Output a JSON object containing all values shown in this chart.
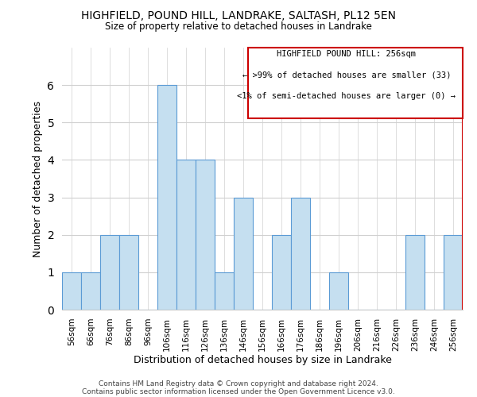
{
  "title": "HIGHFIELD, POUND HILL, LANDRAKE, SALTASH, PL12 5EN",
  "subtitle": "Size of property relative to detached houses in Landrake",
  "xlabel": "Distribution of detached houses by size in Landrake",
  "ylabel": "Number of detached properties",
  "categories": [
    "56sqm",
    "66sqm",
    "76sqm",
    "86sqm",
    "96sqm",
    "106sqm",
    "116sqm",
    "126sqm",
    "136sqm",
    "146sqm",
    "156sqm",
    "166sqm",
    "176sqm",
    "186sqm",
    "196sqm",
    "206sqm",
    "216sqm",
    "226sqm",
    "236sqm",
    "246sqm",
    "256sqm"
  ],
  "values": [
    1,
    1,
    2,
    2,
    0,
    6,
    4,
    4,
    1,
    3,
    0,
    2,
    3,
    0,
    1,
    0,
    0,
    0,
    2,
    0,
    2
  ],
  "bar_color": "#c5dff0",
  "bar_edge_color": "#5b9bd5",
  "highlight_line_color": "#cc0000",
  "annotation_title": "HIGHFIELD POUND HILL: 256sqm",
  "annotation_line1": "← >99% of detached houses are smaller (33)",
  "annotation_line2": "<1% of semi-detached houses are larger (0) →",
  "ylim": [
    0,
    7
  ],
  "yticks": [
    0,
    1,
    2,
    3,
    4,
    5,
    6
  ],
  "footer_line1": "Contains HM Land Registry data © Crown copyright and database right 2024.",
  "footer_line2": "Contains public sector information licensed under the Open Government Licence v3.0.",
  "background_color": "#ffffff",
  "grid_color": "#d0d0d0"
}
